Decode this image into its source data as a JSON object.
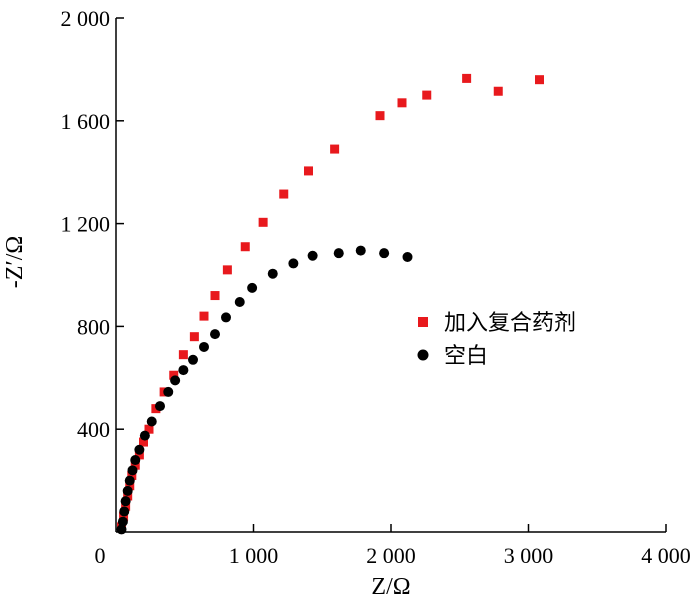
{
  "chart_data": {
    "type": "scatter",
    "title": "",
    "xlabel": "Z/Ω",
    "ylabel": "-Z′/Ω",
    "xlim": [
      0,
      4000
    ],
    "ylim": [
      0,
      2000
    ],
    "x_ticks": [
      0,
      1000,
      2000,
      3000,
      4000
    ],
    "x_tick_labels": [
      "0",
      "1 000",
      "2 000",
      "3 000",
      "4 000"
    ],
    "y_ticks": [
      400,
      800,
      1200,
      1600,
      2000
    ],
    "y_tick_labels": [
      "400",
      "800",
      "1 200",
      "1 600",
      "2 000"
    ],
    "grid": false,
    "legend_position": "right-middle",
    "series": [
      {
        "name": "加入复合药剂",
        "marker": "square",
        "color": "#e8191d",
        "points": [
          [
            40,
            20
          ],
          [
            55,
            60
          ],
          [
            70,
            100
          ],
          [
            85,
            140
          ],
          [
            100,
            180
          ],
          [
            115,
            220
          ],
          [
            140,
            260
          ],
          [
            170,
            300
          ],
          [
            200,
            350
          ],
          [
            240,
            400
          ],
          [
            290,
            480
          ],
          [
            350,
            545
          ],
          [
            420,
            610
          ],
          [
            490,
            690
          ],
          [
            570,
            760
          ],
          [
            640,
            840
          ],
          [
            720,
            920
          ],
          [
            810,
            1020
          ],
          [
            940,
            1110
          ],
          [
            1070,
            1205
          ],
          [
            1220,
            1315
          ],
          [
            1400,
            1405
          ],
          [
            1590,
            1490
          ],
          [
            1920,
            1620
          ],
          [
            2080,
            1670
          ],
          [
            2260,
            1700
          ],
          [
            2550,
            1765
          ],
          [
            2780,
            1715
          ],
          [
            3080,
            1760
          ]
        ]
      },
      {
        "name": "空白",
        "marker": "circle",
        "color": "#000000",
        "points": [
          [
            40,
            10
          ],
          [
            50,
            40
          ],
          [
            60,
            80
          ],
          [
            70,
            120
          ],
          [
            85,
            160
          ],
          [
            100,
            200
          ],
          [
            120,
            240
          ],
          [
            140,
            280
          ],
          [
            170,
            320
          ],
          [
            210,
            375
          ],
          [
            260,
            430
          ],
          [
            320,
            490
          ],
          [
            380,
            545
          ],
          [
            430,
            590
          ],
          [
            490,
            630
          ],
          [
            560,
            670
          ],
          [
            640,
            720
          ],
          [
            720,
            770
          ],
          [
            800,
            835
          ],
          [
            900,
            895
          ],
          [
            990,
            950
          ],
          [
            1140,
            1005
          ],
          [
            1290,
            1045
          ],
          [
            1430,
            1075
          ],
          [
            1620,
            1085
          ],
          [
            1780,
            1095
          ],
          [
            1950,
            1085
          ],
          [
            2120,
            1070
          ]
        ]
      }
    ]
  }
}
